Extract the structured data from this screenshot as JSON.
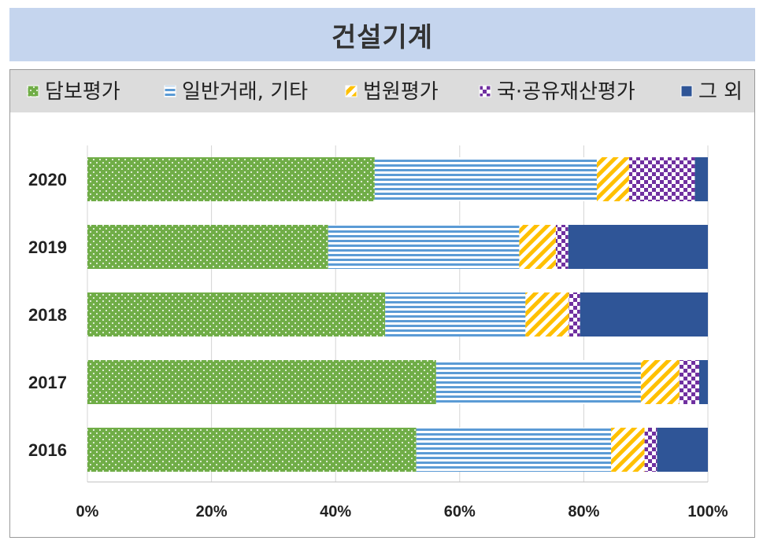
{
  "title": "건설기계",
  "chart_data": {
    "type": "bar",
    "orientation": "horizontal",
    "stacked": true,
    "categories": [
      "2020",
      "2019",
      "2018",
      "2017",
      "2016"
    ],
    "series": [
      {
        "name": "담보평가",
        "color": "#70ad47",
        "pattern": "dots",
        "values": [
          46.3,
          38.8,
          48.0,
          56.2,
          53.0
        ]
      },
      {
        "name": "일반거래, 기타",
        "color": "#5b9bd5",
        "pattern": "horizontal-lines",
        "values": [
          35.8,
          30.8,
          22.6,
          33.0,
          31.4
        ]
      },
      {
        "name": "법원평가",
        "color": "#ffc000",
        "pattern": "diagonal-stripes",
        "values": [
          5.2,
          5.9,
          7.0,
          6.2,
          5.4
        ]
      },
      {
        "name": "국·공유재산평가",
        "color": "#7030a0",
        "pattern": "checker",
        "values": [
          10.6,
          2.0,
          1.8,
          3.2,
          2.0
        ]
      },
      {
        "name": "그 외",
        "color": "#2f5597",
        "pattern": "solid",
        "values": [
          2.1,
          22.5,
          20.6,
          1.4,
          8.2
        ]
      }
    ],
    "x_ticks": [
      "0%",
      "20%",
      "40%",
      "60%",
      "80%",
      "100%"
    ],
    "xlim": [
      0,
      100
    ],
    "grid": true,
    "legend_position": "top"
  }
}
